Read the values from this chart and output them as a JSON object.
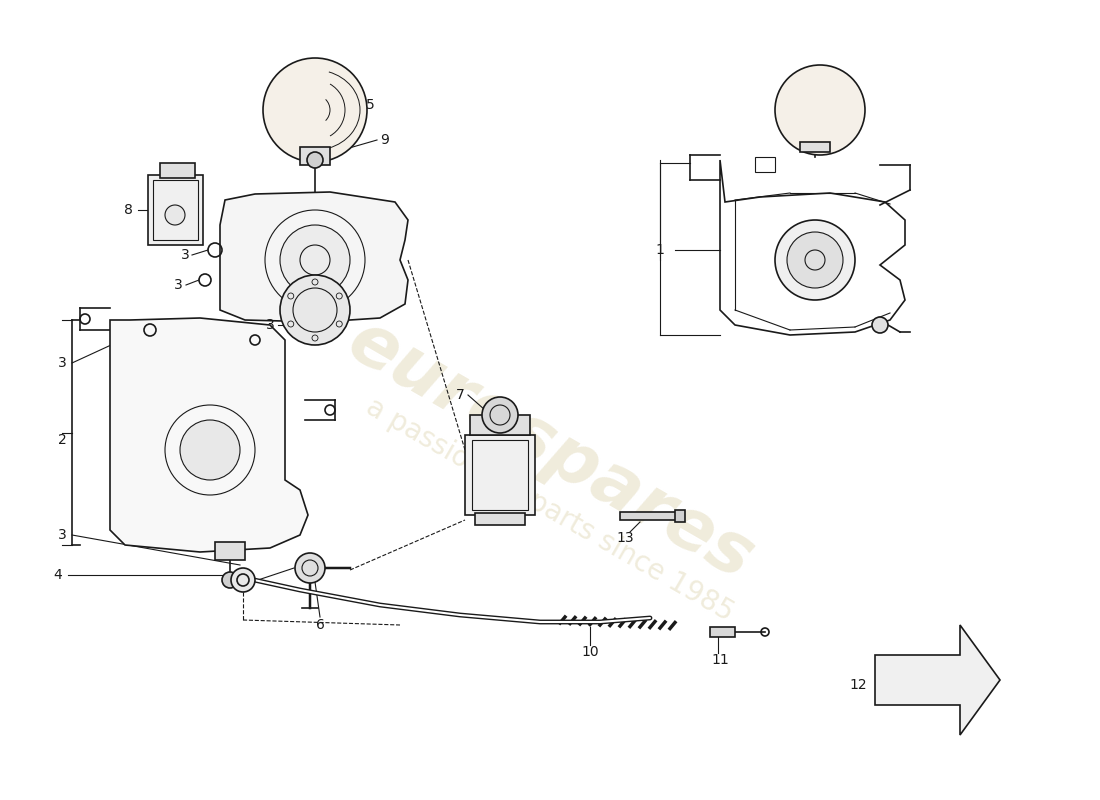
{
  "title": "",
  "background_color": "#ffffff",
  "watermark_text": "eurospares",
  "watermark_subtext": "a passion for parts since 1985",
  "watermark_color": "#d4c89a",
  "part_numbers": [
    1,
    2,
    3,
    4,
    5,
    6,
    7,
    8,
    9,
    10,
    11,
    12,
    13
  ],
  "line_color": "#1a1a1a",
  "diagram_bg": "#ffffff"
}
